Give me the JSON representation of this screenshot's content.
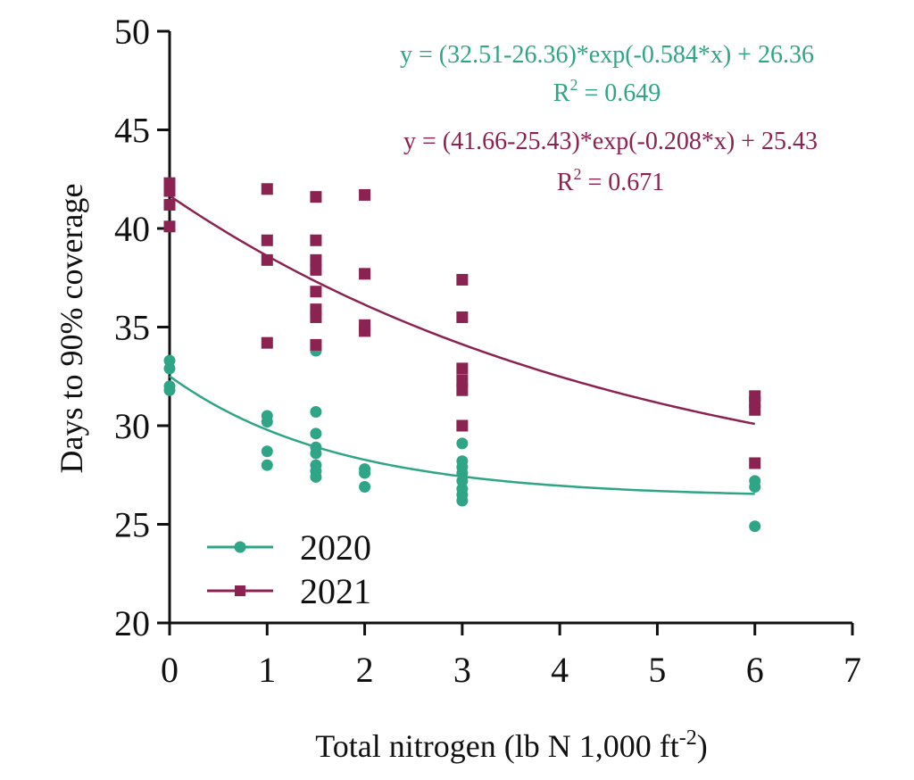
{
  "chart_data": {
    "type": "scatter",
    "xlabel": "Total nitrogen (lb N 1,000 ft",
    "xlabel_sup": "-2",
    "xlabel_end": ")",
    "ylabel": "Days to 90% coverage",
    "xlim": [
      0,
      7
    ],
    "ylim": [
      20,
      50
    ],
    "xticks": [
      0,
      1,
      2,
      3,
      4,
      5,
      6,
      7
    ],
    "yticks": [
      20,
      25,
      30,
      35,
      40,
      45,
      50
    ],
    "grid": false,
    "legend_position": "bottom-left",
    "series": [
      {
        "name": "2020",
        "color": "#2ea586",
        "marker": "circle",
        "fit": {
          "a": 32.51,
          "c": 26.36,
          "k": 0.584
        },
        "equation": "y = (32.51-26.36)*exp(-0.584*x) + 26.36",
        "r2_label": "R",
        "r2_sup": "2",
        "r2_value": " = 0.649",
        "points": [
          [
            0,
            33.3
          ],
          [
            0,
            32.9
          ],
          [
            0,
            32.0
          ],
          [
            0,
            31.8
          ],
          [
            1,
            30.5
          ],
          [
            1,
            30.2
          ],
          [
            1,
            28.7
          ],
          [
            1,
            28.0
          ],
          [
            1.5,
            33.8
          ],
          [
            1.5,
            30.7
          ],
          [
            1.5,
            29.6
          ],
          [
            1.5,
            28.9
          ],
          [
            1.5,
            28.6
          ],
          [
            1.5,
            28.0
          ],
          [
            1.5,
            27.7
          ],
          [
            1.5,
            27.4
          ],
          [
            2,
            27.8
          ],
          [
            2,
            27.6
          ],
          [
            2,
            26.9
          ],
          [
            3,
            29.1
          ],
          [
            3,
            28.2
          ],
          [
            3,
            27.9
          ],
          [
            3,
            27.6
          ],
          [
            3,
            27.2
          ],
          [
            3,
            26.8
          ],
          [
            3,
            26.5
          ],
          [
            3,
            26.2
          ],
          [
            6,
            27.2
          ],
          [
            6,
            26.9
          ],
          [
            6,
            24.9
          ]
        ]
      },
      {
        "name": "2021",
        "color": "#8b2252",
        "marker": "square",
        "fit": {
          "a": 41.66,
          "c": 25.43,
          "k": 0.208
        },
        "equation": "y = (41.66-25.43)*exp(-0.208*x) + 25.43",
        "r2_label": "R",
        "r2_sup": "2",
        "r2_value": " = 0.671",
        "points": [
          [
            0,
            42.3
          ],
          [
            0,
            41.9
          ],
          [
            0,
            41.2
          ],
          [
            0,
            40.1
          ],
          [
            1,
            42.0
          ],
          [
            1,
            39.4
          ],
          [
            1,
            38.4
          ],
          [
            1,
            34.2
          ],
          [
            1.5,
            41.6
          ],
          [
            1.5,
            39.4
          ],
          [
            1.5,
            38.4
          ],
          [
            1.5,
            37.9
          ],
          [
            1.5,
            36.8
          ],
          [
            1.5,
            35.9
          ],
          [
            1.5,
            35.5
          ],
          [
            1.5,
            34.1
          ],
          [
            2,
            41.7
          ],
          [
            2,
            37.7
          ],
          [
            2,
            35.1
          ],
          [
            2,
            34.8
          ],
          [
            3,
            37.4
          ],
          [
            3,
            35.5
          ],
          [
            3,
            32.9
          ],
          [
            3,
            32.3
          ],
          [
            3,
            31.8
          ],
          [
            3,
            30.0
          ],
          [
            6,
            31.5
          ],
          [
            6,
            31.2
          ],
          [
            6,
            30.8
          ],
          [
            6,
            28.1
          ]
        ]
      }
    ]
  }
}
